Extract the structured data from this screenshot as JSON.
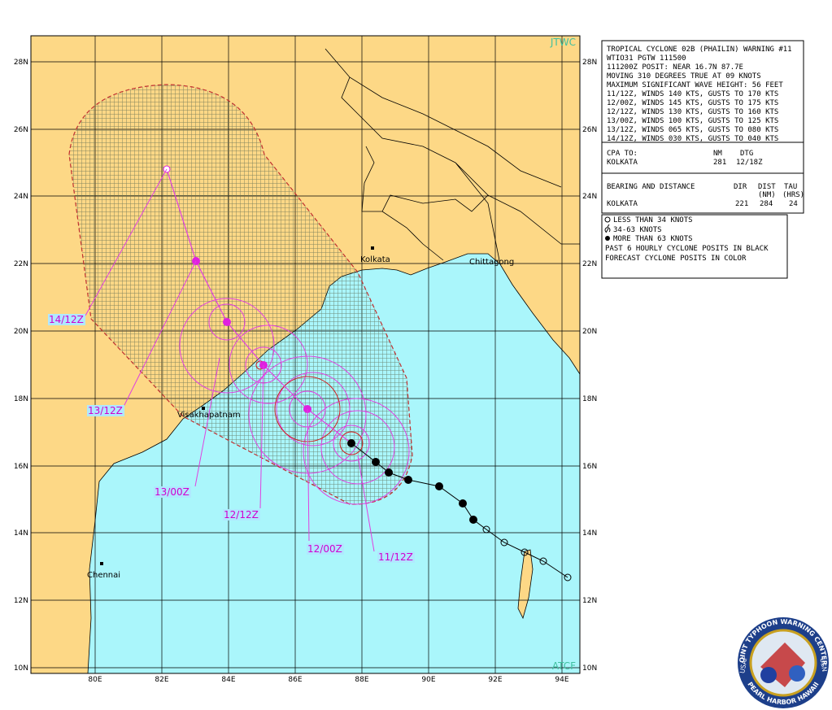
{
  "map": {
    "source": "JTWC",
    "system": "ATCF",
    "lat_labels": [
      "28N",
      "26N",
      "24N",
      "22N",
      "20N",
      "18N",
      "16N",
      "14N",
      "12N",
      "10N"
    ],
    "lon_labels": [
      "80E",
      "82E",
      "84E",
      "86E",
      "88E",
      "90E",
      "92E",
      "94E"
    ],
    "cities": [
      "Kolkata",
      "Chittagong",
      "Visakhapatnam",
      "Chennai"
    ],
    "forecast_labels": [
      "14/12Z",
      "13/12Z",
      "13/00Z",
      "12/12Z",
      "12/00Z",
      "11/12Z"
    ]
  },
  "warning": {
    "lines": [
      "TROPICAL CYCLONE 02B (PHAILIN) WARNING #11",
      "WTIO31 PGTW 111500",
      "111200Z POSIT: NEAR 16.7N 87.7E",
      "MOVING 310 DEGREES TRUE AT 09 KNOTS",
      "MAXIMUM SIGNIFICANT WAVE HEIGHT: 56 FEET",
      "11/12Z, WINDS 140 KTS, GUSTS TO 170 KTS",
      "12/00Z, WINDS 145 KTS, GUSTS TO 175 KTS",
      "12/12Z, WINDS 130 KTS, GUSTS TO 160 KTS",
      "13/00Z, WINDS 100 KTS, GUSTS TO 125 KTS",
      "13/12Z, WINDS 065 KTS, GUSTS TO 080 KTS",
      "14/12Z, WINDS 030 KTS, GUSTS TO 040 KTS"
    ],
    "cpa": {
      "header": [
        "CPA TO:",
        "NM",
        "DTG"
      ],
      "row": [
        "KOLKATA",
        "281",
        "12/18Z"
      ]
    },
    "bearing": {
      "header": [
        "BEARING AND DISTANCE",
        "DIR",
        "DIST",
        "TAU"
      ],
      "units": [
        "(NM)",
        "(HRS)"
      ],
      "row": [
        "KOLKATA",
        "221",
        "284",
        "24"
      ]
    }
  },
  "legend": [
    "LESS THAN 34 KNOTS",
    "34-63 KNOTS",
    "MORE THAN 63 KNOTS",
    "PAST 6 HOURLY CYCLONE POSITS IN BLACK",
    "FORECAST CYCLONE POSITS IN COLOR"
  ],
  "logo": {
    "top": "JOINT TYPHOON WARNING CENTER",
    "bottom": "PEARL HARBOR HAWAII",
    "left": "USAF",
    "right": "USN"
  }
}
